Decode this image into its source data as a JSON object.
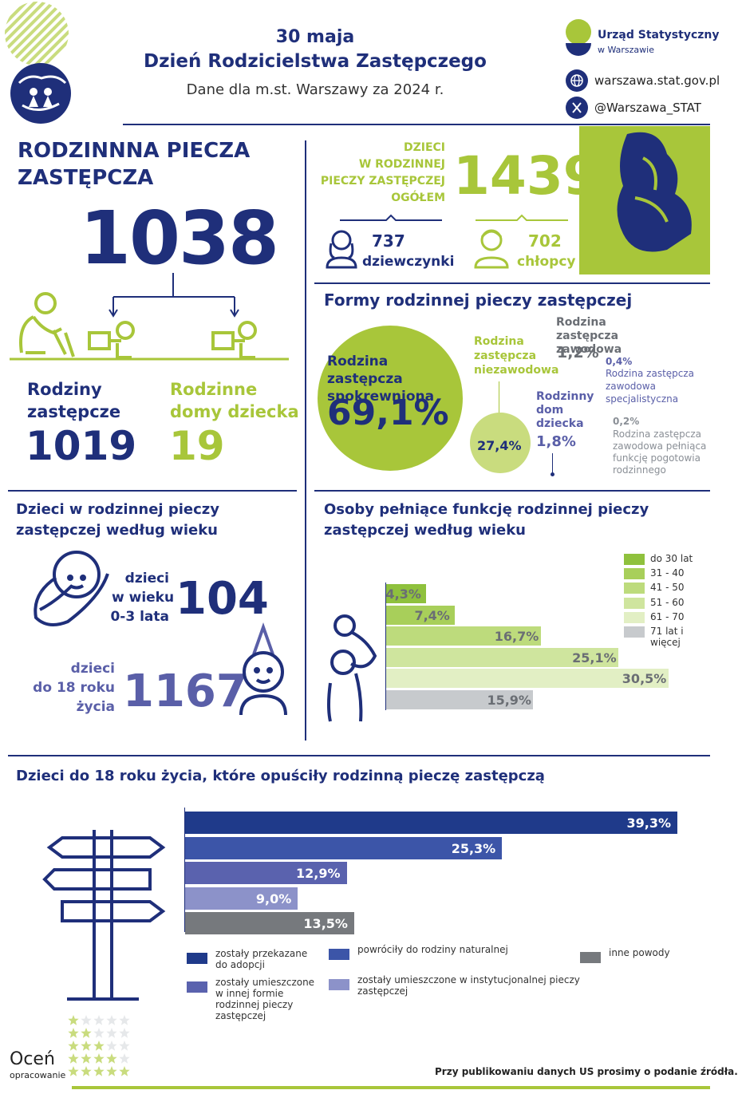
{
  "header": {
    "date": "30 maja",
    "title": "Dzień Rodzicielstwa Zastępczego",
    "subtitle": "Dane dla m.st. Warszawy za 2024 r.",
    "org_name": "Urząd Statystyczny",
    "org_city": "w Warszawie",
    "website": "warszawa.stat.gov.pl",
    "twitter": "@Warszawa_STAT"
  },
  "foster": {
    "heading_line1": "RODZINNNA PIECZA",
    "heading_line2": "ZASTĘPCZA",
    "total": "1038",
    "families_label_1": "Rodziny",
    "families_label_2": "zastępcze",
    "families_value": "1019",
    "homes_label_1": "Rodzinne",
    "homes_label_2": "domy dziecka",
    "homes_value": "19"
  },
  "children": {
    "label_1": "DZIECI",
    "label_2": "W RODZINNEJ",
    "label_3": "PIECZY ZASTĘPCZEJ",
    "label_4": "OGÓŁEM",
    "total": "1439",
    "girls_value": "737",
    "girls_label": "dziewczynki",
    "boys_value": "702",
    "boys_label": "chłopcy"
  },
  "forms": {
    "heading": "Formy rodzinnej pieczy zastępczej",
    "kin_label": "Rodzina zastępcza spokrewniona",
    "kin_value": "69,1%",
    "nonprof_label_1": "Rodzina",
    "nonprof_label_2": "zastępcza",
    "nonprof_label_3": "niezawodowa",
    "nonprof_value": "27,4%",
    "prof_label": "Rodzina zastępcza zawodowa",
    "prof_value": "1,2%",
    "home_label_1": "Rodzinny",
    "home_label_2": "dom",
    "home_label_3": "dziecka",
    "home_value": "1,8%",
    "spec_value": "0,4%",
    "spec_label": "Rodzina zastępcza zawodowa specjalistyczna",
    "emerg_value": "0,2%",
    "emerg_label": "Rodzina zastępcza zawodowa pełniąca funkcję pogotowia rodzinnego"
  },
  "age_children": {
    "heading_1": "Dzieci w rodzinnej pieczy",
    "heading_2": "zastępczej według wieku",
    "a_label_1": "dzieci",
    "a_label_2": "w wieku",
    "a_label_3": "0-3 lata",
    "a_value": "104",
    "b_label_1": "dzieci",
    "b_label_2": "do 18 roku",
    "b_label_3": "życia",
    "b_value": "1167"
  },
  "caregivers": {
    "heading_1": "Osoby pełniące funkcję rodzinnej pieczy",
    "heading_2": "zastępczej według wieku"
  },
  "left_care": {
    "heading": "Dzieci do 18 roku życia, które opuściły rodzinną pieczę zastępczą"
  },
  "footer": {
    "rate_1": "Oceń",
    "rate_2": "opracowanie",
    "note": "Przy publikowaniu danych US prosimy o podanie źródła."
  },
  "colors": {
    "navy": "#1f2f7a",
    "lime": "#a8c63a",
    "violet": "#5a5fa8"
  },
  "chart_data": [
    {
      "type": "bar",
      "orientation": "horizontal",
      "categories": [
        "do 30 lat",
        "31 - 40",
        "41 - 50",
        "51 - 60",
        "61 - 70",
        "71 lat i więcej"
      ],
      "values": [
        4.3,
        7.4,
        16.7,
        25.1,
        30.5,
        15.9
      ],
      "labels": [
        "4,3%",
        "7,4%",
        "16,7%",
        "25,1%",
        "30,5%",
        "15,9%"
      ],
      "colors": [
        "#8fc13d",
        "#a8cf5a",
        "#bddb7c",
        "#cfe59e",
        "#e2efc4",
        "#c7cacd"
      ],
      "unit": "%",
      "legend": "right"
    },
    {
      "type": "bar",
      "orientation": "horizontal",
      "categories": [
        "zostały przekazane do adopcji",
        "powróciły do rodziny naturalnej",
        "zostały umieszczone w innej formie rodzinnej pieczy zastępczej",
        "zostały umieszczone w instytucjonalnej pieczy zastępczej",
        "inne powody"
      ],
      "values": [
        39.3,
        25.3,
        12.9,
        9.0,
        13.5
      ],
      "labels": [
        "39,3%",
        "25,3%",
        "12,9%",
        "9,0%",
        "13,5%"
      ],
      "colors": [
        "#1f3a8a",
        "#3c55a8",
        "#5a62ae",
        "#8c92c9",
        "#76797d"
      ],
      "unit": "%",
      "legend": "bottom"
    }
  ]
}
